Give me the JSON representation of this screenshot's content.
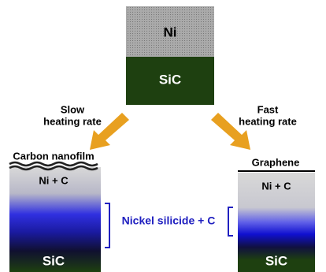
{
  "top": {
    "upper_layer": "Ni",
    "lower_layer": "SiC"
  },
  "left": {
    "arrow_label": [
      "Slow",
      "heating rate"
    ],
    "surface_label": "Carbon nanofilm",
    "upper_layer": "Ni + C",
    "lower_layer": "SiC"
  },
  "right": {
    "arrow_label": [
      "Fast",
      "heating rate"
    ],
    "surface_label": "Graphene",
    "upper_layer": "Ni + C",
    "lower_layer": "SiC"
  },
  "middle_label": "Nickel silicide + C"
}
